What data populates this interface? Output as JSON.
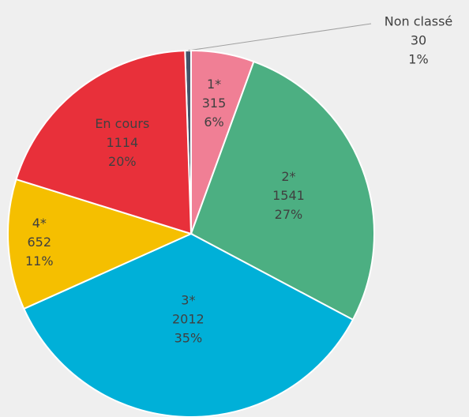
{
  "chart_data": {
    "type": "pie",
    "categories": [
      "Non classé",
      "1*",
      "2*",
      "3*",
      "4*",
      "En cours"
    ],
    "values": [
      30,
      315,
      1541,
      2012,
      652,
      1114
    ],
    "percent_labels": [
      "1%",
      "6%",
      "27%",
      "35%",
      "11%",
      "20%"
    ],
    "colors": [
      "#44546a",
      "#f07f95",
      "#4caf82",
      "#00b0d8",
      "#f5bf00",
      "#e8303a"
    ]
  }
}
